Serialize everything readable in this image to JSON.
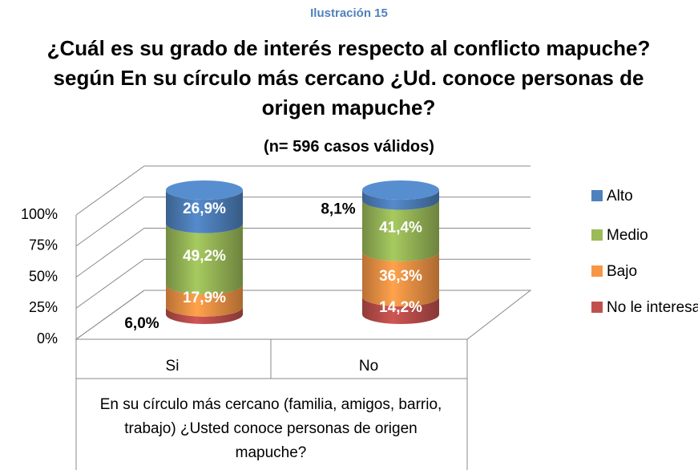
{
  "chart_data": {
    "type": "bar3d",
    "kicker": "Ilustración 15",
    "title": "¿Cuál es su grado de interés respecto al conflicto mapuche? según En su círculo más cercano ¿Ud. conoce personas de origen mapuche?",
    "subtitle": "(n= 596 casos válidos)",
    "x_label": "En su círculo más cercano (familia, amigos, barrio, trabajo) ¿Usted conoce personas de origen mapuche?",
    "categories": [
      "Si",
      "No"
    ],
    "series": [
      {
        "name": "No le interesa",
        "color": "#c0504d",
        "values": [
          6.0,
          14.2
        ],
        "value_labels": [
          "6,0%",
          "14,2%"
        ]
      },
      {
        "name": "Bajo",
        "color": "#f79646",
        "values": [
          17.9,
          36.3
        ],
        "value_labels": [
          "17,9%",
          "36,3%"
        ]
      },
      {
        "name": "Medio",
        "color": "#9bbb59",
        "values": [
          49.2,
          41.4
        ],
        "value_labels": [
          "49,2%",
          "41,4%"
        ]
      },
      {
        "name": "Alto",
        "color": "#4f81bd",
        "values": [
          26.9,
          8.1
        ],
        "value_labels": [
          "26,9%",
          "8,1%"
        ]
      }
    ],
    "stacked": true,
    "ylim": [
      0,
      100
    ],
    "yticks": [
      {
        "value": 0,
        "label": "0%"
      },
      {
        "value": 25,
        "label": "25%"
      },
      {
        "value": 50,
        "label": "50%"
      },
      {
        "value": 75,
        "label": "75%"
      },
      {
        "value": 100,
        "label": "100%"
      }
    ],
    "grid": true,
    "legend": "right"
  }
}
